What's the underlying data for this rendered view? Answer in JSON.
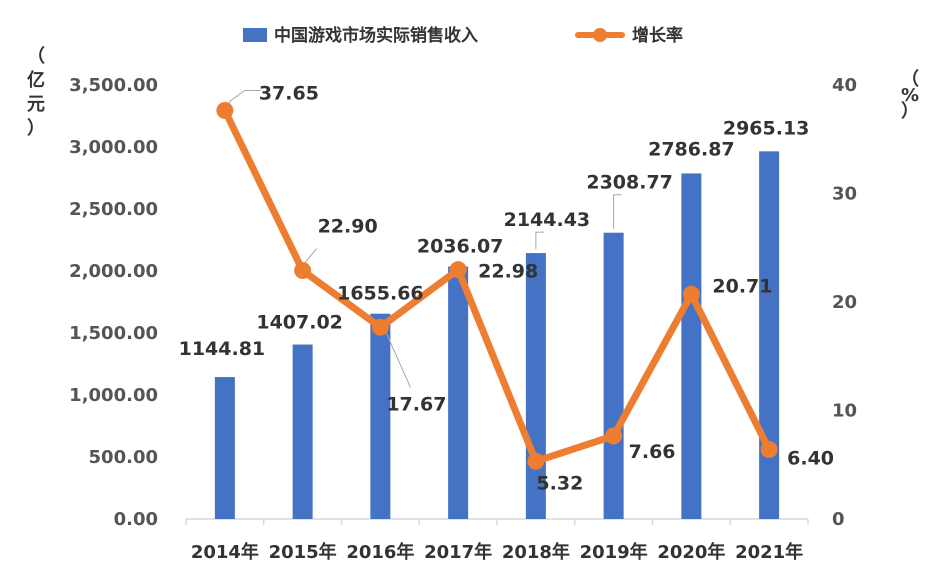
{
  "chart_data": {
    "type": "bar+line",
    "categories": [
      "2014年",
      "2015年",
      "2016年",
      "2017年",
      "2018年",
      "2019年",
      "2020年",
      "2021年"
    ],
    "series": [
      {
        "name": "中国游戏市场实际销售收入",
        "type": "bar",
        "axis": "left",
        "color": "#4472C4",
        "values": [
          1144.81,
          1407.02,
          1655.66,
          2036.07,
          2144.43,
          2308.77,
          2786.87,
          2965.13
        ],
        "labels": [
          "1144.81",
          "1407.02",
          "1655.66",
          "2036.07",
          "2144.43",
          "2308.77",
          "2786.87",
          "2965.13"
        ]
      },
      {
        "name": "增长率",
        "type": "line",
        "axis": "right",
        "color": "#ED7D31",
        "values": [
          37.65,
          22.9,
          17.67,
          22.98,
          5.32,
          7.66,
          20.71,
          6.4
        ],
        "labels": [
          "37.65",
          "22.90",
          "17.67",
          "22.98",
          "5.32",
          "7.66",
          "20.71",
          "6.40"
        ]
      }
    ],
    "left_axis": {
      "unit_label": [
        "（",
        "亿",
        "元",
        "）"
      ],
      "range": [
        0,
        3500
      ],
      "ticks": [
        "0.00",
        "500.00",
        "1,000.00",
        "1,500.00",
        "2,000.00",
        "2,500.00",
        "3,000.00",
        "3,500.00"
      ]
    },
    "right_axis": {
      "unit_label": [
        "（",
        "%",
        "）"
      ],
      "range": [
        0,
        40
      ],
      "ticks": [
        "0",
        "10",
        "20",
        "30",
        "40"
      ]
    },
    "legend_position": "top-center",
    "grid": false
  }
}
